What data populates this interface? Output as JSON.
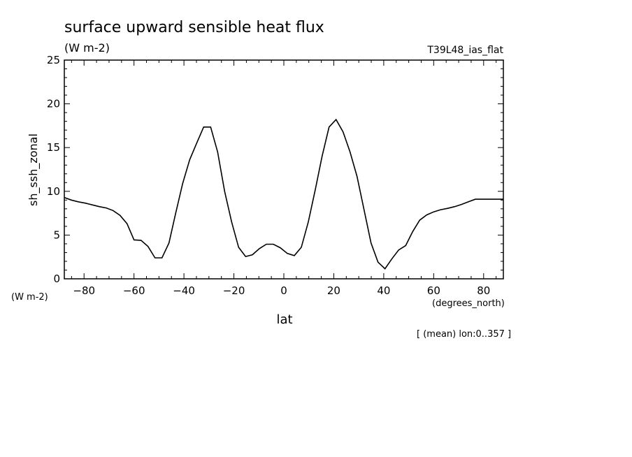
{
  "chart_data": {
    "type": "line",
    "title": "surface upward sensible heat flux",
    "units": "(W m-2)",
    "experiment": "T39L48_ias_flat",
    "xlabel": "lat",
    "x_units": "(degrees_north)",
    "ylabel": "sh_ssh_zonal",
    "y_units": "(W m-2)",
    "footnote": "[ (mean) lon:0..357 ]",
    "xlim": [
      -87.9,
      87.9
    ],
    "ylim": [
      0,
      25
    ],
    "x_ticks": [
      -80,
      -60,
      -40,
      -20,
      0,
      20,
      40,
      60,
      80
    ],
    "y_ticks": [
      0,
      5,
      10,
      15,
      20,
      25
    ],
    "grid": false,
    "series": [
      {
        "x": [
          -87.9,
          -85.1,
          -82.3,
          -79.5,
          -76.7,
          -73.9,
          -71.1,
          -68.4,
          -65.6,
          -62.8,
          -60.0,
          -57.2,
          -54.4,
          -51.6,
          -48.8,
          -46.0,
          -43.3,
          -40.5,
          -37.7,
          -34.9,
          -32.1,
          -29.3,
          -26.5,
          -23.7,
          -20.9,
          -18.1,
          -15.3,
          -12.6,
          -9.8,
          -7.0,
          -4.2,
          -1.4,
          1.4,
          4.2,
          7.0,
          9.8,
          12.6,
          15.3,
          18.1,
          20.9,
          23.7,
          26.5,
          29.3,
          32.1,
          34.9,
          37.7,
          40.5,
          43.3,
          46.0,
          48.8,
          51.6,
          54.4,
          57.2,
          60.0,
          62.8,
          65.6,
          68.4,
          71.1,
          73.9,
          76.7,
          79.5,
          82.3,
          85.1,
          87.9
        ],
        "y": [
          9.3,
          9.0,
          8.8,
          8.65,
          8.45,
          8.25,
          8.1,
          7.8,
          7.25,
          6.3,
          4.45,
          4.4,
          3.7,
          2.4,
          2.4,
          4.1,
          7.5,
          10.9,
          13.6,
          15.5,
          17.35,
          17.35,
          14.5,
          10.0,
          6.5,
          3.6,
          2.55,
          2.75,
          3.45,
          3.95,
          3.95,
          3.55,
          2.9,
          2.65,
          3.6,
          6.5,
          10.2,
          14.0,
          17.35,
          18.2,
          16.8,
          14.5,
          11.7,
          7.9,
          4.1,
          1.9,
          1.15,
          2.3,
          3.3,
          3.8,
          5.4,
          6.7,
          7.3,
          7.65,
          7.9,
          8.05,
          8.25,
          8.5,
          8.8,
          9.1,
          9.1,
          9.1,
          9.1,
          9.1
        ]
      }
    ]
  }
}
